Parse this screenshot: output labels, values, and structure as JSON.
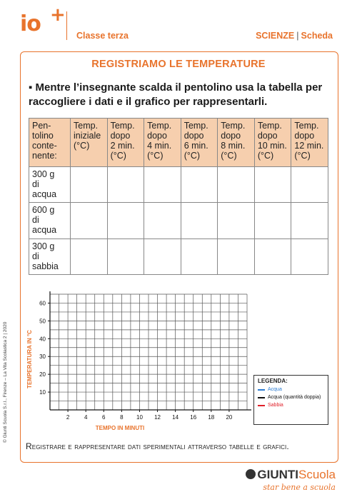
{
  "header": {
    "logo_text": "io",
    "logo_plus": "+",
    "class_label": "Classe terza",
    "subject": "SCIENZE",
    "separator": "|",
    "sheet_type": "Scheda"
  },
  "title": "REGISTRIAMO LE TEMPERATURE",
  "instruction": "▪ Mentre l’insegnante scalda il pentolino usa la tabella per raccogliere i dati e il grafico per rappresentarli.",
  "table": {
    "headers": [
      "Pen-\ntolino\nconte-\nnente:",
      "Temp.\niniziale\n(°C)",
      "Temp.\ndopo\n2 min.\n(°C)",
      "Temp.\ndopo\n4 min.\n(°C)",
      "Temp.\ndopo\n6 min.\n(°C)",
      "Temp.\ndopo\n8 min.\n(°C)",
      "Temp.\ndopo\n10 min.\n(°C)",
      "Temp.\ndopo\n12 min.\n(°C)"
    ],
    "rows": [
      "300 g\ndi\nacqua",
      "600 g\ndi\nacqua",
      "300 g\ndi\nsabbia"
    ]
  },
  "chart_data": {
    "type": "line",
    "title": "",
    "xlabel": "TEMPO IN MINUTI",
    "ylabel": "TEMPERATURA IN °C",
    "x_ticks": [
      2,
      4,
      6,
      8,
      10,
      12,
      14,
      16,
      18,
      20
    ],
    "y_ticks": [
      10,
      20,
      30,
      40,
      50,
      60
    ],
    "xlim": [
      0,
      22
    ],
    "ylim": [
      0,
      65
    ],
    "grid": true,
    "series": [],
    "legend": {
      "title": "LEGENDA:",
      "placement": "bottom-right",
      "entries": [
        {
          "label": "Acqua",
          "color": "#2a7bd1"
        },
        {
          "label": "Acqua (quantità doppia)",
          "color": "#111111"
        },
        {
          "label": "Sabbia",
          "color": "#e0202a"
        }
      ]
    }
  },
  "footer": {
    "text": "Registrare e rappresentare dati sperimentali attraverso tabelle e grafici."
  },
  "side_credit": "© Giunti Scuola S.r.l., Firenze – La Vita Scolastica 2 | 2020",
  "brand": {
    "name_main": "GIUNTI",
    "name_accent": "Scuola",
    "tagline": "star bene a scuola"
  },
  "colors": {
    "accent": "#e8732c",
    "header_fill": "#f6cfae"
  }
}
